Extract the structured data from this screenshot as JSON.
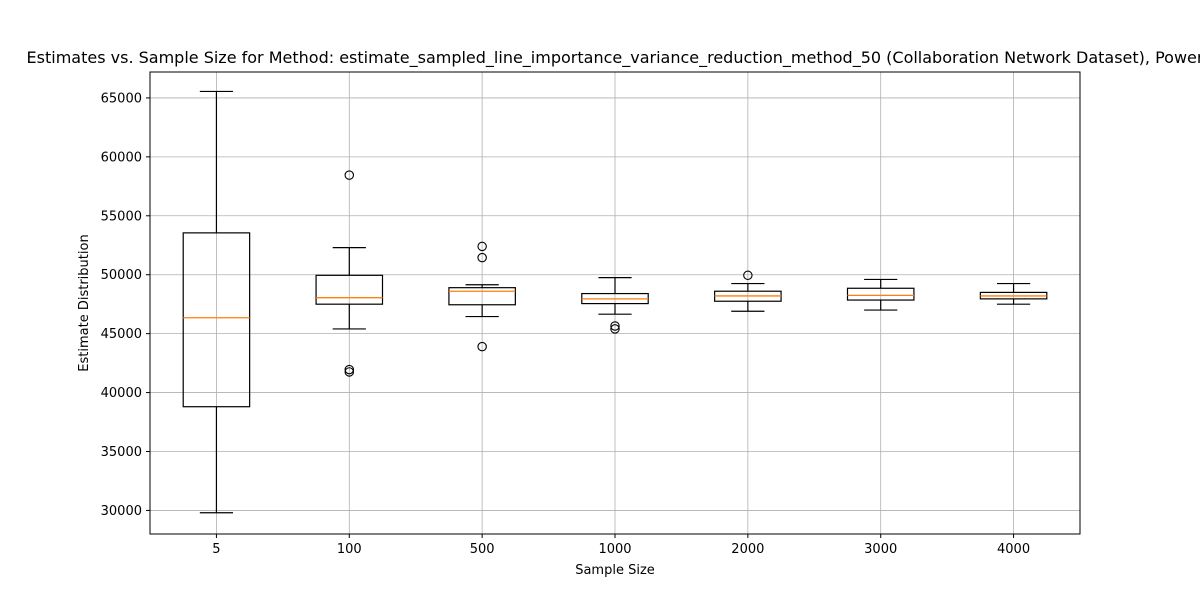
{
  "chart_data": {
    "type": "boxplot",
    "title": "Estimates vs. Sample Size for Method: estimate_sampled_line_importance_variance_reduction_method_50 (Collaboration Network Dataset), Power",
    "xlabel": "Sample Size",
    "ylabel": "Estimate Distribution",
    "categories": [
      "5",
      "100",
      "500",
      "1000",
      "2000",
      "3000",
      "4000"
    ],
    "ylim": [
      28000,
      67200
    ],
    "yticks": [
      30000,
      35000,
      40000,
      45000,
      50000,
      55000,
      60000,
      65000
    ],
    "grid": true,
    "boxes": [
      {
        "category": "5",
        "whisker_low": 29800,
        "q1": 38800,
        "median": 46350,
        "q3": 53550,
        "whisker_high": 65550,
        "outliers": []
      },
      {
        "category": "100",
        "whisker_low": 45400,
        "q1": 47500,
        "median": 48050,
        "q3": 49950,
        "whisker_high": 52300,
        "outliers": [
          58450,
          41950,
          41750
        ]
      },
      {
        "category": "500",
        "whisker_low": 46450,
        "q1": 47450,
        "median": 48600,
        "q3": 48900,
        "whisker_high": 49150,
        "outliers": [
          52400,
          51450,
          43900
        ]
      },
      {
        "category": "1000",
        "whisker_low": 46650,
        "q1": 47550,
        "median": 47950,
        "q3": 48400,
        "whisker_high": 49750,
        "outliers": [
          45650,
          45400
        ]
      },
      {
        "category": "2000",
        "whisker_low": 46900,
        "q1": 47750,
        "median": 48200,
        "q3": 48600,
        "whisker_high": 49250,
        "outliers": [
          49950
        ]
      },
      {
        "category": "3000",
        "whisker_low": 47000,
        "q1": 47850,
        "median": 48250,
        "q3": 48850,
        "whisker_high": 49600,
        "outliers": []
      },
      {
        "category": "4000",
        "whisker_low": 47500,
        "q1": 47950,
        "median": 48200,
        "q3": 48500,
        "whisker_high": 49250,
        "outliers": []
      }
    ],
    "colors": {
      "box": "#000000",
      "median": "#ff7f0e",
      "grid": "#b0b0b0",
      "axis": "#000000",
      "background": "#ffffff"
    }
  }
}
